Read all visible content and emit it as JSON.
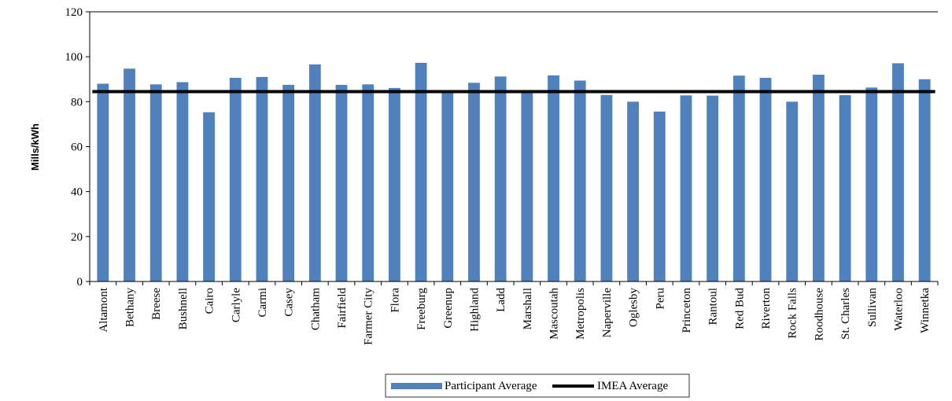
{
  "chart_data": {
    "type": "bar",
    "title": "",
    "xlabel": "",
    "ylabel": "Mills/kWh",
    "ylim": [
      0,
      120
    ],
    "yticks": [
      0,
      20,
      40,
      60,
      80,
      100,
      120
    ],
    "grid": false,
    "legend_position": "bottom",
    "categories": [
      "Altamont",
      "Bethany",
      "Breese",
      "Bushnell",
      "Cairo",
      "Carlyle",
      "Carmi",
      "Casey",
      "Chatham",
      "Fairfield",
      "Farmer City",
      "Flora",
      "Freeburg",
      "Greenup",
      "Highland",
      "Ladd",
      "Marshall",
      "Mascoutah",
      "Metropolis",
      "Naperville",
      "Oglesby",
      "Peru",
      "Princeton",
      "Rantoul",
      "Red Bud",
      "Riverton",
      "Rock Falls",
      "Roodhouse",
      "St. Charles",
      "Sullivan",
      "Waterloo",
      "Winnetka"
    ],
    "series": [
      {
        "name": "Participant Average",
        "type": "bar",
        "color": "#4f81bd",
        "values": [
          88,
          94.7,
          87.7,
          88.7,
          75.3,
          90.6,
          91,
          87.5,
          96.6,
          87.5,
          87.7,
          86.1,
          97.3,
          84.6,
          88.4,
          91.2,
          84.5,
          91.7,
          89.4,
          83,
          80,
          75.6,
          82.8,
          82.7,
          91.6,
          90.6,
          80,
          92,
          82.9,
          86.3,
          97.1,
          90
        ]
      },
      {
        "name": "IMEA Average",
        "type": "line",
        "color": "#000000",
        "value": 84.5
      }
    ]
  }
}
